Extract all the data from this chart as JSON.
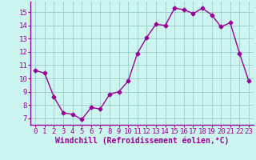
{
  "x": [
    0,
    1,
    2,
    3,
    4,
    5,
    6,
    7,
    8,
    9,
    10,
    11,
    12,
    13,
    14,
    15,
    16,
    17,
    18,
    19,
    20,
    21,
    22,
    23
  ],
  "y": [
    10.6,
    10.4,
    8.6,
    7.4,
    7.3,
    6.9,
    7.8,
    7.7,
    8.8,
    9.0,
    9.8,
    11.9,
    13.1,
    14.1,
    14.0,
    15.3,
    15.2,
    14.9,
    15.3,
    14.8,
    13.9,
    14.2,
    11.9,
    9.8
  ],
  "line_color": "#990099",
  "marker": "D",
  "marker_size": 2.5,
  "bg_color": "#ccf5f0",
  "grid_color": "#99cccc",
  "xlabel": "Windchill (Refroidissement éolien,°C)",
  "xlabel_fontsize": 7,
  "xtick_labels": [
    "0",
    "1",
    "2",
    "3",
    "4",
    "5",
    "6",
    "7",
    "8",
    "9",
    "10",
    "11",
    "12",
    "13",
    "14",
    "15",
    "16",
    "17",
    "18",
    "19",
    "20",
    "21",
    "22",
    "23"
  ],
  "ytick_labels": [
    "7",
    "8",
    "9",
    "10",
    "11",
    "12",
    "13",
    "14",
    "15"
  ],
  "yticks": [
    7,
    8,
    9,
    10,
    11,
    12,
    13,
    14,
    15
  ],
  "ylim": [
    6.5,
    15.8
  ],
  "xlim": [
    -0.5,
    23.5
  ],
  "tick_fontsize": 6.5,
  "axis_color": "#990099"
}
